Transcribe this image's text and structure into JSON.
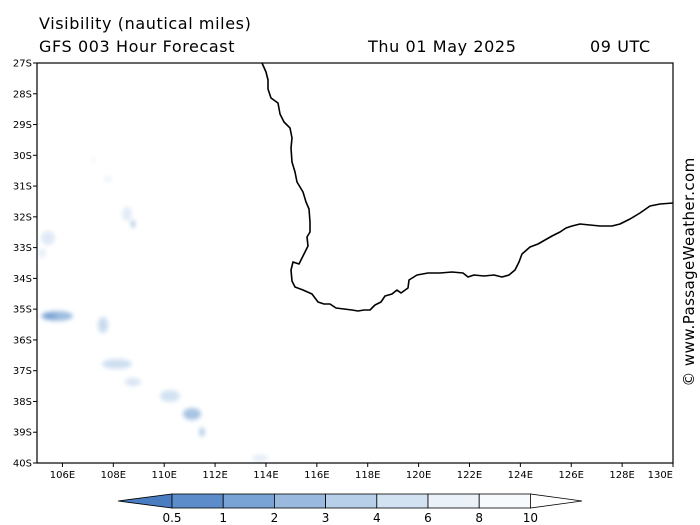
{
  "title": {
    "variable": "Visibility (nautical miles)",
    "model": "GFS 003 Hour Forecast",
    "date": "Thu 01 May 2025",
    "time": "09 UTC"
  },
  "watermark": "© www.PassageWeather.com",
  "map": {
    "lon_range": [
      105,
      130
    ],
    "lat_range": [
      -40,
      -27
    ],
    "lat_labels": [
      "27S",
      "28S",
      "29S",
      "30S",
      "31S",
      "32S",
      "33S",
      "34S",
      "35S",
      "36S",
      "37S",
      "38S",
      "39S",
      "40S"
    ],
    "lon_labels": [
      "106E",
      "108E",
      "110E",
      "112E",
      "114E",
      "116E",
      "118E",
      "120E",
      "122E",
      "124E",
      "126E",
      "128E",
      "130E"
    ]
  },
  "color_scale": {
    "labels": [
      "0.5",
      "1",
      "2",
      "3",
      "4",
      "6",
      "8",
      "10"
    ],
    "colors": [
      "#4a7cc1",
      "#5d8cca",
      "#79a2d5",
      "#99bade",
      "#b7cfe8",
      "#d3e2f2",
      "#eaf1f9",
      "#f7fafd",
      "#ffffff"
    ]
  }
}
